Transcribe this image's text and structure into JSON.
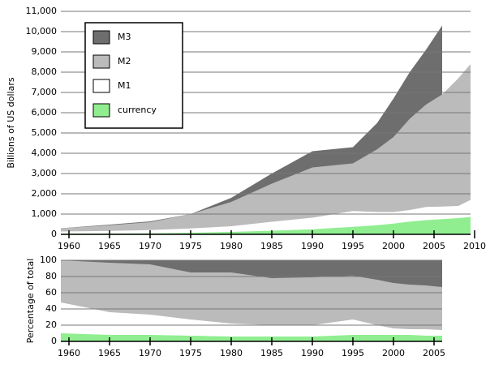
{
  "chart_data": [
    {
      "type": "area",
      "y_label": "Billions of US dollars",
      "x": [
        1959,
        1965,
        1970,
        1975,
        1980,
        1985,
        1990,
        1995,
        1998,
        2000,
        2002,
        2004,
        2006,
        2008,
        2009.5
      ],
      "series": [
        {
          "name": "M3",
          "color": "#6e6e6e",
          "values": [
            300,
            480,
            640,
            1000,
            1800,
            3000,
            4100,
            4300,
            5500,
            6700,
            8000,
            9100,
            10300,
            null,
            null
          ]
        },
        {
          "name": "M2",
          "color": "#bbbbbb",
          "values": [
            300,
            450,
            600,
            1000,
            1600,
            2500,
            3300,
            3500,
            4200,
            4800,
            5700,
            6400,
            6900,
            7700,
            8400
          ]
        },
        {
          "name": "M1",
          "color": "#ffffff",
          "values": [
            140,
            170,
            210,
            290,
            400,
            620,
            820,
            1150,
            1100,
            1100,
            1200,
            1350,
            1370,
            1400,
            1700
          ]
        },
        {
          "name": "currency",
          "color": "#90ee90",
          "values": [
            30,
            40,
            50,
            80,
            120,
            180,
            250,
            370,
            450,
            530,
            630,
            700,
            750,
            800,
            860
          ]
        }
      ],
      "xlim": [
        1959,
        2009.5
      ],
      "xticks": [
        1960,
        1965,
        1970,
        1975,
        1980,
        1985,
        1990,
        1995,
        2000,
        2005,
        2010
      ],
      "ylim": [
        0,
        11000
      ],
      "yticks": [
        0,
        {
          "value": 1000,
          "label": "1,000"
        },
        {
          "value": 2000,
          "label": "2,000"
        },
        {
          "value": 3000,
          "label": "3,000"
        },
        {
          "value": 4000,
          "label": "4,000"
        },
        {
          "value": 5000,
          "label": "5,000"
        },
        {
          "value": 6000,
          "label": "6,000"
        },
        {
          "value": 7000,
          "label": "7,000"
        },
        {
          "value": 8000,
          "label": "8,000"
        },
        {
          "value": 9000,
          "label": "9,000"
        },
        {
          "value": 10000,
          "label": "10,000"
        },
        {
          "value": 11000,
          "label": "11,000"
        }
      ],
      "grid": true,
      "legend": "upper left"
    },
    {
      "type": "area",
      "y_label": "Percentage of total",
      "x": [
        1959,
        1965,
        1970,
        1975,
        1980,
        1985,
        1990,
        1995,
        1998,
        2000,
        2002,
        2004,
        2006
      ],
      "series": [
        {
          "name": "M3",
          "color": "#6e6e6e",
          "values": [
            100,
            100,
            100,
            100,
            100,
            100,
            100,
            100,
            100,
            100,
            100,
            100,
            100
          ]
        },
        {
          "name": "M2",
          "color": "#bbbbbb",
          "values": [
            100,
            97,
            95,
            85,
            85,
            78,
            79,
            81,
            76,
            72,
            70,
            69,
            67
          ]
        },
        {
          "name": "M1",
          "color": "#ffffff",
          "values": [
            48,
            36,
            33,
            27,
            22,
            20,
            20,
            27,
            20,
            16,
            15,
            15,
            14
          ]
        },
        {
          "name": "currency",
          "color": "#90ee90",
          "values": [
            10,
            8,
            8,
            7,
            6,
            6,
            6,
            8,
            8,
            8,
            8,
            7,
            7
          ]
        }
      ],
      "xlim": [
        1959,
        2006
      ],
      "xticks": [
        1960,
        1965,
        1970,
        1975,
        1980,
        1985,
        1990,
        1995,
        2000,
        2005
      ],
      "ylim": [
        0,
        100
      ],
      "yticks": [
        0,
        20,
        40,
        60,
        80,
        100
      ],
      "grid": true
    }
  ]
}
